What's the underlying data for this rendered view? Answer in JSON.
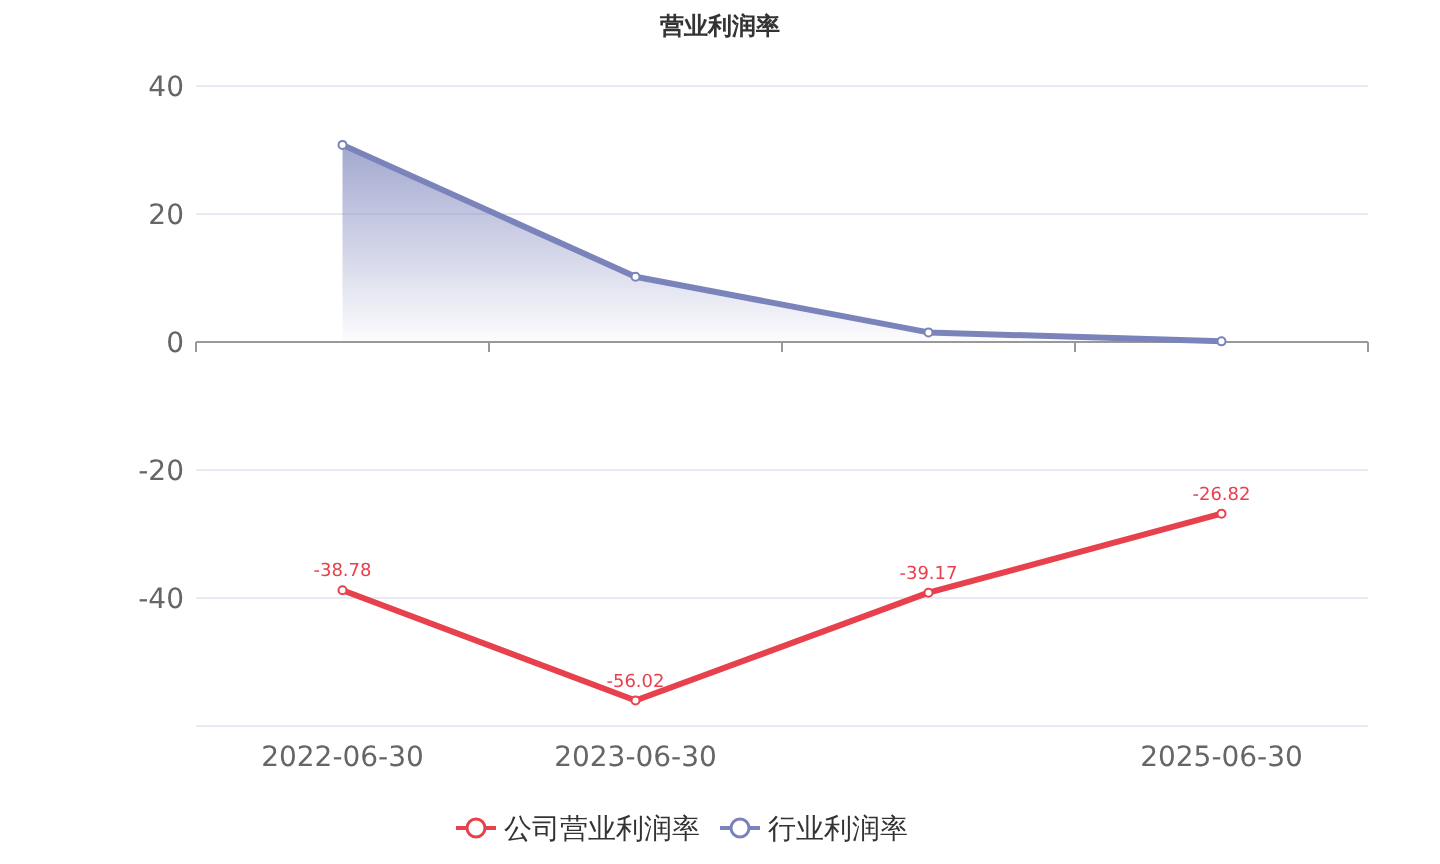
{
  "chart_data": {
    "type": "line",
    "title": "营业利润率",
    "categories": [
      "2022-06-30",
      "2023-06-30",
      null,
      "2025-06-30"
    ],
    "series": [
      {
        "name": "公司营业利润率",
        "color": "#e8414e",
        "values": [
          -38.78,
          -56.02,
          -39.17,
          -26.82
        ],
        "value_labels": [
          "-38.78",
          "-56.02",
          "-39.17",
          "-26.82"
        ]
      },
      {
        "name": "行业利润率",
        "type": "area",
        "color": "#7b83bb",
        "values": [
          30.8,
          10.2,
          1.5,
          0.1
        ]
      }
    ],
    "ylim": [
      -60,
      40
    ],
    "yticks": [
      -40,
      -20,
      0,
      20,
      40
    ],
    "grid": "y",
    "legend": "bottom",
    "marker": "circle",
    "line_style": "solid"
  }
}
